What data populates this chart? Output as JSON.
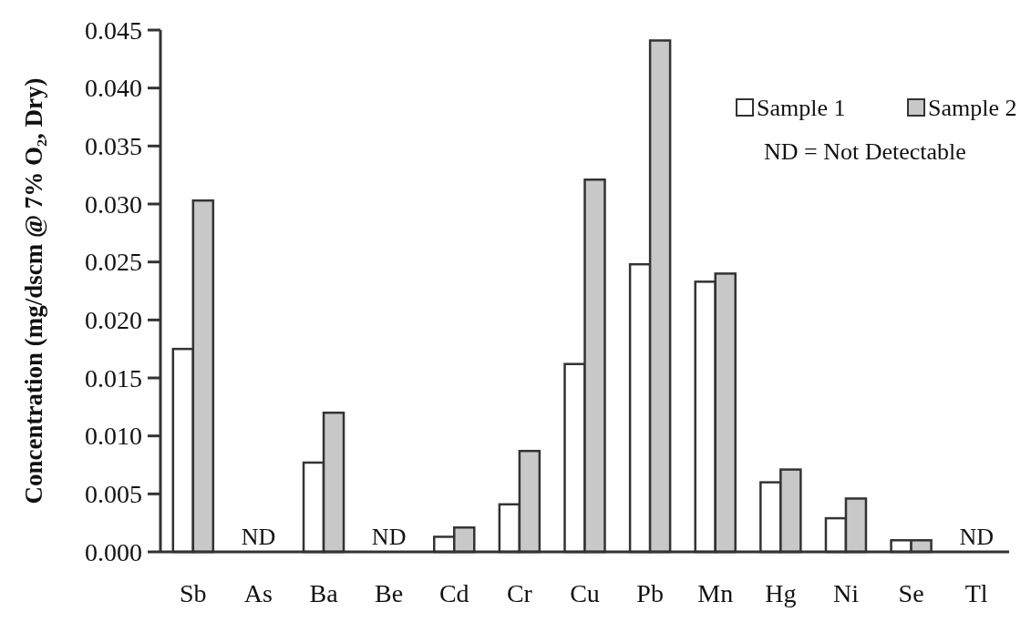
{
  "chart_data": {
    "type": "bar",
    "ylabel": "Concentration (mg/dscm @ 7% O₂, Dry)",
    "categories": [
      "Sb",
      "As",
      "Ba",
      "Be",
      "Cd",
      "Cr",
      "Cu",
      "Pb",
      "Mn",
      "Hg",
      "Ni",
      "Se",
      "Tl"
    ],
    "series": [
      {
        "name": "Sample 1",
        "color": "#ffffff",
        "values": [
          0.0175,
          null,
          0.0077,
          null,
          0.0013,
          0.0041,
          0.0162,
          0.0248,
          0.0233,
          0.006,
          0.0029,
          0.001,
          null
        ]
      },
      {
        "name": "Sample 2",
        "color": "#c8c8c8",
        "values": [
          0.0303,
          null,
          0.012,
          null,
          0.0021,
          0.0087,
          0.0321,
          0.0441,
          0.024,
          0.0071,
          0.0046,
          0.001,
          null
        ]
      }
    ],
    "ylim": [
      0,
      0.045
    ],
    "yticks": [
      {
        "value": 0,
        "label": "0.000"
      },
      {
        "value": 0.005,
        "label": "0.005"
      },
      {
        "value": 0.01,
        "label": "0.010"
      },
      {
        "value": 0.015,
        "label": "0.015"
      },
      {
        "value": 0.02,
        "label": "0.020"
      },
      {
        "value": 0.025,
        "label": "0.025"
      },
      {
        "value": 0.03,
        "label": "0.030"
      },
      {
        "value": 0.035,
        "label": "0.035"
      },
      {
        "value": 0.04,
        "label": "0.040"
      },
      {
        "value": 0.045,
        "label": "0.045"
      }
    ],
    "annotations": [
      "ND",
      "ND",
      "ND",
      "ND = Not Detectable"
    ],
    "grid": false,
    "legend": "top right"
  }
}
